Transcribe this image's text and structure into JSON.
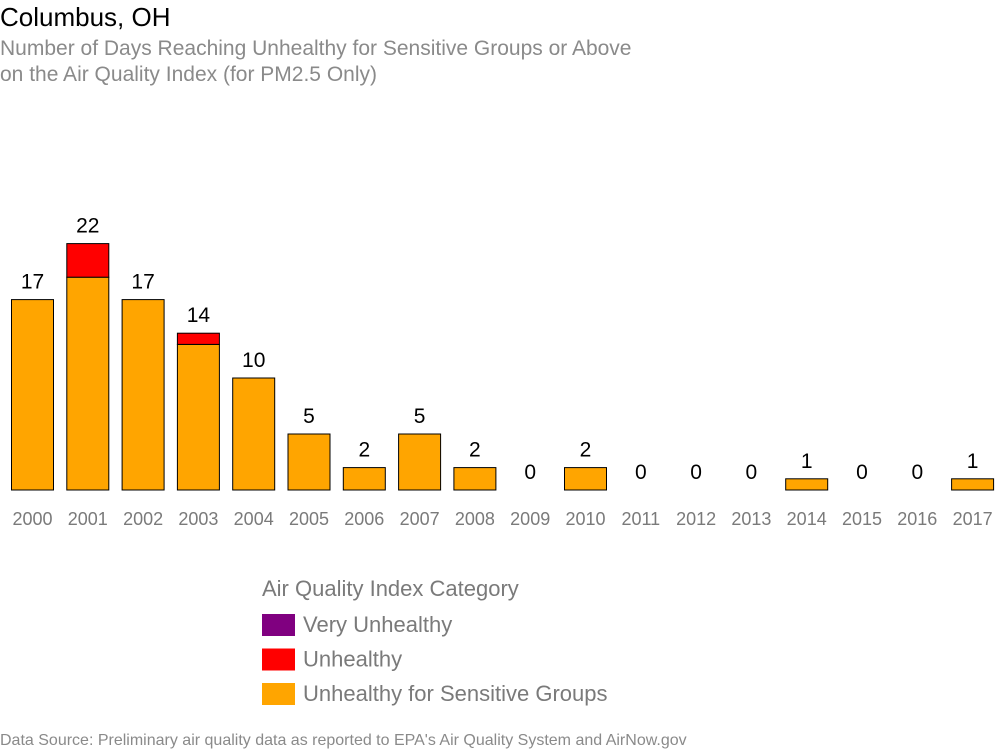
{
  "chart_data": {
    "type": "bar",
    "stacked": true,
    "title": "Columbus, OH",
    "subtitle_lines": [
      "Number of Days Reaching Unhealthy for Sensitive Groups or Above",
      "on the Air Quality Index (for PM2.5 Only)"
    ],
    "categories": [
      "2000",
      "2001",
      "2002",
      "2003",
      "2004",
      "2005",
      "2006",
      "2007",
      "2008",
      "2009",
      "2010",
      "2011",
      "2012",
      "2013",
      "2014",
      "2015",
      "2016",
      "2017"
    ],
    "totals": [
      17,
      22,
      17,
      14,
      10,
      5,
      2,
      5,
      2,
      0,
      2,
      0,
      0,
      0,
      1,
      0,
      0,
      1
    ],
    "series": [
      {
        "name": "Unhealthy for Sensitive Groups",
        "color": "#FFA500",
        "values": [
          17,
          19,
          17,
          13,
          10,
          5,
          2,
          5,
          2,
          0,
          2,
          0,
          0,
          0,
          1,
          0,
          0,
          1
        ]
      },
      {
        "name": "Unhealthy",
        "color": "#FF0000",
        "values": [
          0,
          3,
          0,
          1,
          0,
          0,
          0,
          0,
          0,
          0,
          0,
          0,
          0,
          0,
          0,
          0,
          0,
          0
        ]
      },
      {
        "name": "Very Unhealthy",
        "color": "#800080",
        "values": [
          0,
          0,
          0,
          0,
          0,
          0,
          0,
          0,
          0,
          0,
          0,
          0,
          0,
          0,
          0,
          0,
          0,
          0
        ]
      }
    ],
    "ylim": [
      0,
      22
    ],
    "grid": false,
    "legend": {
      "title": "Air Quality Index Category",
      "placement": "bottom-center",
      "entries": [
        {
          "label": "Very Unhealthy",
          "color": "#800080"
        },
        {
          "label": "Unhealthy",
          "color": "#FF0000"
        },
        {
          "label": "Unhealthy for Sensitive Groups",
          "color": "#FFA500"
        }
      ]
    },
    "caption": "Data Source: Preliminary air quality data as reported to EPA's Air Quality System and AirNow.gov"
  }
}
